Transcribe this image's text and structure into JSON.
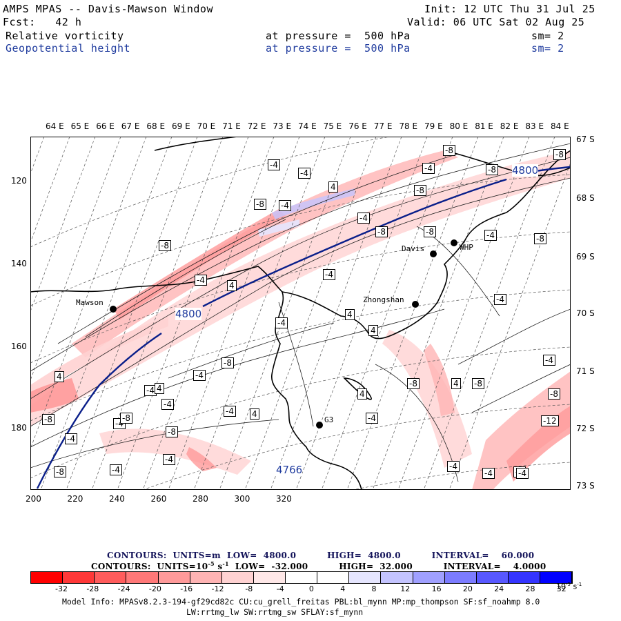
{
  "header": {
    "title": "AMPS MPAS -- Davis-Mawson Window",
    "init": "Init: 12 UTC Thu 31 Jul 25",
    "fcst": "Fcst:   42 h",
    "valid": "Valid: 06 UTC Sat 02 Aug 25",
    "field1_name": "Relative vorticity",
    "field1_level": "at pressure =  500 hPa",
    "field1_sm": "sm= 2",
    "field2_name": "Geopotential height",
    "field2_level": "at pressure =  500 hPa",
    "field2_sm": "sm= 2"
  },
  "map": {
    "top_lon_labels": [
      "64 E",
      "65 E",
      "66 E",
      "67 E",
      "68 E",
      "69 E",
      "70 E",
      "71 E",
      "72 E",
      "73 E",
      "74 E",
      "75 E",
      "76 E",
      "77 E",
      "78 E",
      "79 E",
      "80 E",
      "81 E",
      "82 E",
      "83 E",
      "84 E"
    ],
    "right_lat_labels": [
      "67 S",
      "68 S",
      "69 S",
      "70 S",
      "71 S",
      "72 S",
      "73 S"
    ],
    "x_ticks": [
      "200",
      "220",
      "240",
      "260",
      "280",
      "300",
      "320"
    ],
    "y_ticks": [
      "120",
      "140",
      "160",
      "180"
    ],
    "stations": [
      {
        "name": "Mawson"
      },
      {
        "name": "Davis"
      },
      {
        "name": "WHP"
      },
      {
        "name": "Zhongshan"
      },
      {
        "name": "G3"
      }
    ],
    "height_labels": [
      "4800",
      "4800",
      "4766"
    ],
    "vort_labels": [
      "-4",
      "-4",
      "-4",
      "4",
      "-8",
      "-4",
      "-8",
      "-8",
      "-4",
      "-4",
      "4",
      "-4",
      "-8",
      "-8",
      "-8",
      "-4",
      "-4",
      "-8",
      "4",
      "-4",
      "-8",
      "-4",
      "-4",
      "4",
      "-4",
      "4",
      "-4",
      "-4",
      "-8",
      "-8",
      "-4",
      "-4",
      "-8",
      "-8",
      "-4",
      "-4",
      "-8",
      "-12",
      "-8",
      "-4",
      "-8",
      "-4",
      "-8",
      "-8",
      "-4",
      "4",
      "4",
      "4",
      "4",
      "-8",
      "-4"
    ],
    "colors": {
      "height_contour": "#0a1f8a",
      "coast": "#000000",
      "grid": "#555555"
    }
  },
  "legend": {
    "height_line": "CONTOURS:  UNITS=m  LOW=  4800.0          HIGH=  4800.0          INTERVAL=    60.000",
    "vort_line_a": "CONTOURS:  UNITS=10",
    "vort_line_sup": "-5",
    "vort_line_b": " s",
    "vort_line_sup2": "-1",
    "vort_line_c": "  LOW=  -32.000          HIGH=  32.000          INTERVAL=    4.0000",
    "colorbar_labels": [
      "-32",
      "-28",
      "-24",
      "-20",
      "-16",
      "-12",
      "-8",
      "-4",
      "0",
      "4",
      "8",
      "12",
      "16",
      "20",
      "24",
      "28",
      "32"
    ],
    "colorbar_unit": "10",
    "colorbar_unit_sup": "-5",
    "colorbar_unit_s": " s",
    "colorbar_unit_sup2": "-1",
    "colorbar_colors": [
      "#ff0000",
      "#ff3838",
      "#ff5c5c",
      "#ff7878",
      "#ff9a9a",
      "#ffb4b4",
      "#ffd2d2",
      "#ffe8e8",
      "#ffffff",
      "#ffffff",
      "#e6e6ff",
      "#c4c4ff",
      "#a0a0ff",
      "#7c7cff",
      "#5858ff",
      "#3434ff",
      "#0000ff"
    ]
  },
  "model_info": {
    "line1": "Model Info: MPASv8.2.3-194-gf29cd82c CU:cu_grell_freitas PBL:bl_mynn MP:mp_thompson SF:sf_noahmp 8.0",
    "line2": "LW:rrtmg_lw SW:rrtmg_sw SFLAY:sf_mynn"
  }
}
